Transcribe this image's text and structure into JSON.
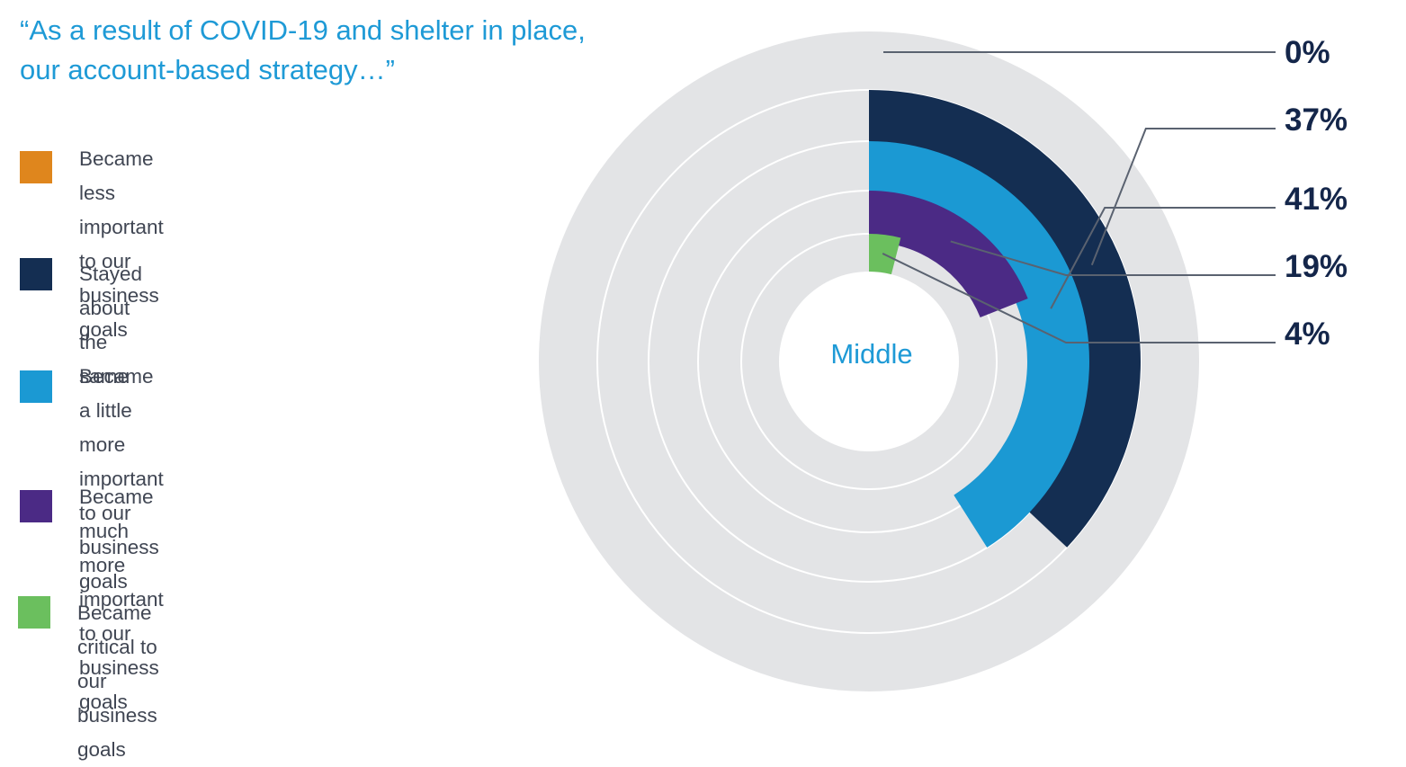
{
  "title": "“As a result of COVID-19 and shelter in place, our account-based strategy…”",
  "chart_data": {
    "type": "pie",
    "subtype": "radial-bar",
    "center_label": "Middle",
    "categories": [
      "Became less important to our business goals",
      "Stayed about the same",
      "Became a little more important to our business goals",
      "Became much more important to our business goals",
      "Became critical to our business goals"
    ],
    "values": [
      0,
      37,
      41,
      19,
      4
    ],
    "value_labels": [
      "0%",
      "37%",
      "41%",
      "19%",
      "4%"
    ],
    "colors": [
      "#df861d",
      "#142e52",
      "#1b99d3",
      "#4b2a85",
      "#6bbf5e"
    ],
    "track_color": "#e3e4e6",
    "legend_position": "left"
  },
  "legend": [
    {
      "label": "Became less important to our\nbusiness goals",
      "color": "#df861d"
    },
    {
      "label": "Stayed about the same",
      "color": "#142e52"
    },
    {
      "label": "Became a little more important\nto our business goals",
      "color": "#1b99d3"
    },
    {
      "label": "Became much more important\nto our business goals",
      "color": "#4b2a85"
    },
    {
      "label": "Became critical to our business goals",
      "color": "#6bbf5e"
    }
  ]
}
